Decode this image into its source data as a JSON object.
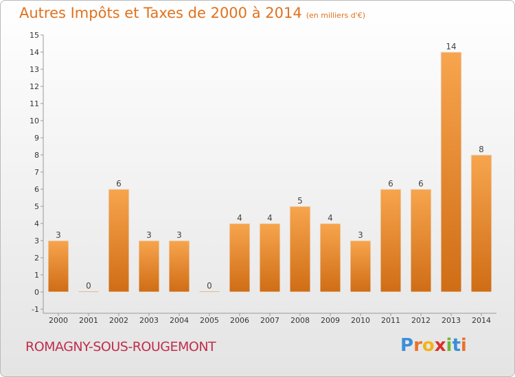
{
  "chart_data": {
    "type": "bar",
    "title": "Autres Impôts et Taxes de 2000 à 2014",
    "subtitle": "(en milliers d'€)",
    "categories": [
      "2000",
      "2001",
      "2002",
      "2003",
      "2004",
      "2005",
      "2006",
      "2007",
      "2008",
      "2009",
      "2010",
      "2011",
      "2012",
      "2013",
      "2014"
    ],
    "values": [
      3,
      0,
      6,
      3,
      3,
      0,
      4,
      4,
      5,
      4,
      3,
      6,
      6,
      14,
      8
    ],
    "ylim": [
      -1,
      15
    ],
    "yticks": [
      -1,
      0,
      1,
      2,
      3,
      4,
      5,
      6,
      7,
      8,
      9,
      10,
      11,
      12,
      13,
      14,
      15
    ],
    "xlabel": "",
    "ylabel": "",
    "grid": false,
    "bar_color": "#f0922e"
  },
  "footer": {
    "commune": "ROMAGNY-SOUS-ROUGEMONT",
    "logo": {
      "letters": [
        "P",
        "r",
        "o",
        "x",
        "i",
        "t",
        "i"
      ],
      "colors": [
        "#3b8fd8",
        "#e8732a",
        "#f2b41b",
        "#d9312b",
        "#6fb73a",
        "#3b8fd8",
        "#e8732a"
      ]
    }
  }
}
